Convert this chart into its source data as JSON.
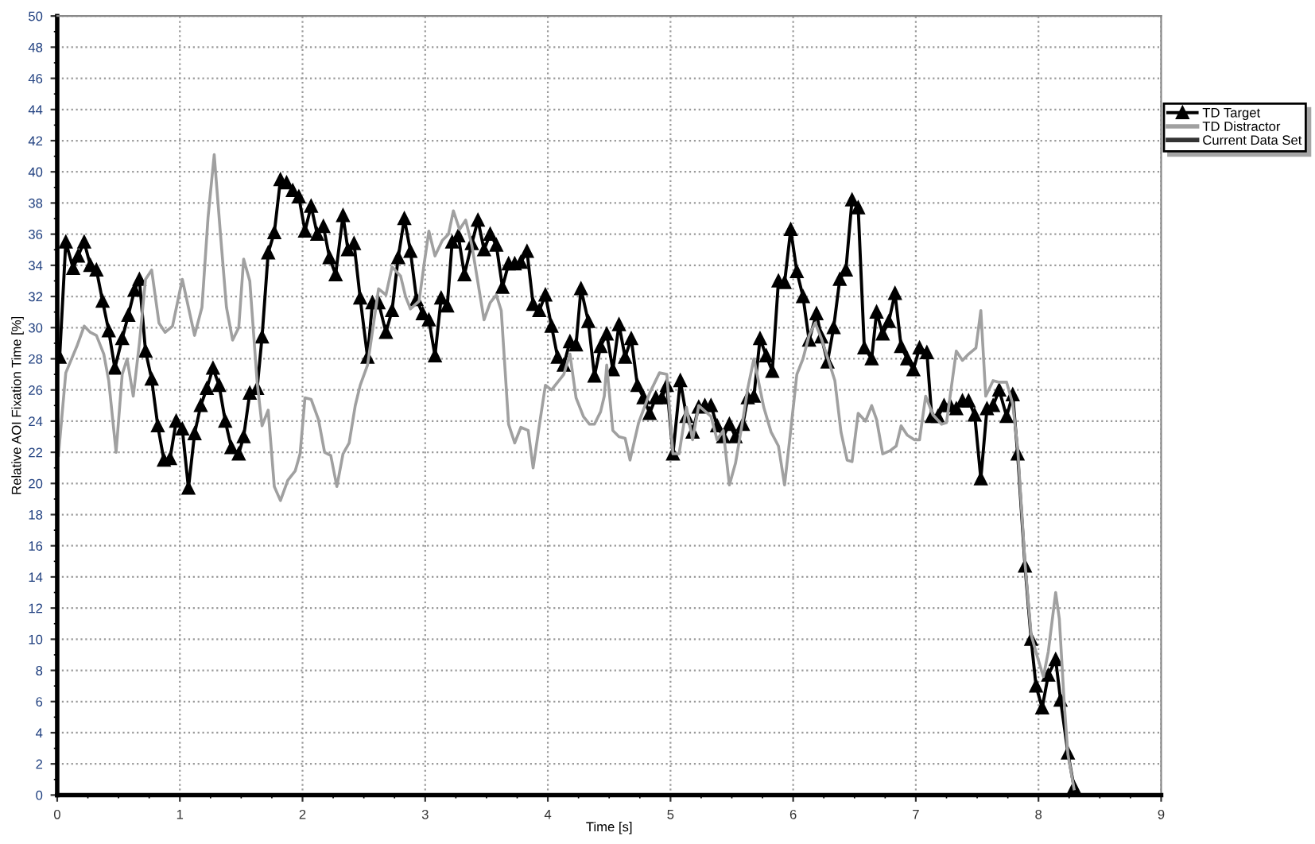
{
  "chart_data": {
    "type": "line",
    "xlabel": "Time [s]",
    "ylabel": "Relative AOI Fixation Time [%]",
    "xlim": [
      0,
      9
    ],
    "xticks": [
      0,
      1,
      2,
      3,
      4,
      5,
      6,
      7,
      8,
      9
    ],
    "ylim": [
      0,
      50
    ],
    "yticks": [
      0,
      2,
      4,
      6,
      8,
      10,
      12,
      14,
      16,
      18,
      20,
      22,
      24,
      26,
      28,
      30,
      32,
      34,
      36,
      38,
      40,
      42,
      44,
      46,
      48,
      50
    ],
    "grid": true,
    "legend": "right",
    "series": [
      {
        "name": "TD Target",
        "color": "#000000",
        "marker": "triangle",
        "line_style": "solid",
        "x": [
          0.02,
          0.07,
          0.13,
          0.17,
          0.22,
          0.27,
          0.32,
          0.37,
          0.42,
          0.47,
          0.53,
          0.58,
          0.63,
          0.67,
          0.72,
          0.77,
          0.82,
          0.87,
          0.92,
          0.97,
          1.02,
          1.07,
          1.12,
          1.17,
          1.22,
          1.27,
          1.32,
          1.37,
          1.42,
          1.48,
          1.52,
          1.57,
          1.63,
          1.67,
          1.72,
          1.77,
          1.82,
          1.87,
          1.92,
          1.97,
          2.02,
          2.07,
          2.12,
          2.17,
          2.22,
          2.27,
          2.33,
          2.37,
          2.42,
          2.47,
          2.53,
          2.57,
          2.62,
          2.68,
          2.73,
          2.78,
          2.83,
          2.88,
          2.93,
          2.98,
          3.03,
          3.08,
          3.13,
          3.18,
          3.22,
          3.27,
          3.32,
          3.38,
          3.43,
          3.48,
          3.53,
          3.58,
          3.63,
          3.68,
          3.73,
          3.78,
          3.83,
          3.88,
          3.93,
          3.98,
          4.03,
          4.08,
          4.13,
          4.18,
          4.23,
          4.27,
          4.33,
          4.38,
          4.43,
          4.48,
          4.53,
          4.58,
          4.63,
          4.68,
          4.73,
          4.78,
          4.83,
          4.88,
          4.93,
          4.97,
          5.02,
          5.08,
          5.13,
          5.18,
          5.23,
          5.28,
          5.33,
          5.38,
          5.43,
          5.48,
          5.53,
          5.59,
          5.63,
          5.68,
          5.73,
          5.78,
          5.83,
          5.88,
          5.93,
          5.98,
          6.03,
          6.08,
          6.13,
          6.19,
          6.23,
          6.28,
          6.33,
          6.38,
          6.43,
          6.48,
          6.53,
          6.58,
          6.64,
          6.68,
          6.73,
          6.78,
          6.83,
          6.88,
          6.93,
          6.98,
          7.03,
          7.09,
          7.13,
          7.18,
          7.23,
          7.28,
          7.33,
          7.38,
          7.43,
          7.48,
          7.53,
          7.58,
          7.63,
          7.68,
          7.74,
          7.79,
          7.83,
          7.89,
          7.94,
          7.98,
          8.03,
          8.08,
          8.14,
          8.18,
          8.24,
          8.29
        ],
        "values": [
          28.1,
          35.5,
          33.8,
          34.6,
          35.5,
          34.0,
          33.7,
          31.7,
          29.8,
          27.4,
          29.3,
          30.8,
          32.4,
          33.1,
          28.5,
          26.7,
          23.7,
          21.5,
          21.6,
          24.0,
          23.5,
          19.7,
          23.2,
          25.0,
          26.1,
          27.4,
          26.3,
          24.0,
          22.3,
          21.9,
          23.0,
          25.8,
          26.1,
          29.4,
          34.8,
          36.1,
          39.5,
          39.3,
          38.8,
          38.4,
          36.2,
          37.8,
          36.0,
          36.5,
          34.5,
          33.4,
          37.2,
          35.0,
          35.4,
          31.9,
          28.1,
          31.6,
          31.6,
          29.7,
          31.1,
          34.5,
          37.0,
          34.9,
          31.8,
          30.9,
          30.5,
          28.2,
          31.9,
          31.4,
          35.5,
          35.9,
          33.4,
          35.4,
          36.9,
          35.0,
          36.0,
          35.3,
          32.6,
          34.1,
          34.1,
          34.2,
          34.9,
          31.5,
          31.1,
          32.1,
          30.1,
          28.1,
          27.6,
          29.1,
          28.9,
          32.5,
          30.4,
          26.9,
          28.8,
          29.6,
          27.3,
          30.2,
          28.1,
          29.3,
          26.3,
          25.5,
          24.5,
          25.5,
          25.5,
          26.3,
          21.9,
          26.6,
          24.3,
          23.3,
          24.9,
          25.0,
          25.0,
          23.7,
          23.0,
          23.8,
          23.0,
          23.8,
          25.5,
          25.6,
          29.3,
          28.2,
          27.2,
          33.0,
          32.9,
          36.3,
          33.6,
          32.0,
          29.2,
          30.9,
          29.4,
          27.8,
          30.0,
          33.1,
          33.7,
          38.2,
          37.7,
          28.7,
          28.0,
          31.0,
          29.6,
          30.4,
          32.2,
          28.8,
          28.0,
          27.3,
          28.7,
          28.4,
          24.3,
          24.3,
          25.0,
          25.0,
          24.8,
          25.3,
          25.3,
          24.4,
          20.3,
          24.8,
          25.0,
          26.0,
          24.3,
          25.7,
          21.9,
          14.7,
          10.0,
          7.0,
          5.6,
          7.7,
          8.7,
          6.1,
          2.7,
          0.5
        ]
      },
      {
        "name": "TD Distractor",
        "color": "#a0a0a0",
        "marker": "none",
        "line_style": "solid",
        "x": [
          0.01,
          0.07,
          0.16,
          0.22,
          0.27,
          0.32,
          0.38,
          0.42,
          0.48,
          0.53,
          0.57,
          0.62,
          0.67,
          0.72,
          0.77,
          0.83,
          0.88,
          0.94,
          1.02,
          1.12,
          1.18,
          1.23,
          1.28,
          1.33,
          1.38,
          1.43,
          1.48,
          1.52,
          1.57,
          1.63,
          1.67,
          1.72,
          1.77,
          1.82,
          1.88,
          1.94,
          1.98,
          2.02,
          2.07,
          2.13,
          2.18,
          2.23,
          2.28,
          2.33,
          2.38,
          2.43,
          2.47,
          2.53,
          2.58,
          2.62,
          2.68,
          2.73,
          2.8,
          2.84,
          2.88,
          2.95,
          2.99,
          3.03,
          3.08,
          3.14,
          3.19,
          3.23,
          3.28,
          3.33,
          3.38,
          3.48,
          3.53,
          3.58,
          3.62,
          3.68,
          3.73,
          3.78,
          3.84,
          3.88,
          3.93,
          3.98,
          4.03,
          4.08,
          4.13,
          4.18,
          4.23,
          4.29,
          4.34,
          4.38,
          4.43,
          4.46,
          4.48,
          4.53,
          4.58,
          4.63,
          4.67,
          4.74,
          4.83,
          4.91,
          4.97,
          5.02,
          5.07,
          5.13,
          5.18,
          5.23,
          5.33,
          5.38,
          5.43,
          5.48,
          5.53,
          5.59,
          5.63,
          5.68,
          5.76,
          5.82,
          5.88,
          5.93,
          5.98,
          6.03,
          6.08,
          6.13,
          6.18,
          6.23,
          6.3,
          6.34,
          6.39,
          6.44,
          6.48,
          6.53,
          6.59,
          6.64,
          6.68,
          6.73,
          6.79,
          6.84,
          6.88,
          6.93,
          6.99,
          7.03,
          7.08,
          7.14,
          7.21,
          7.25,
          7.33,
          7.38,
          7.43,
          7.49,
          7.53,
          7.57,
          7.63,
          7.68,
          7.74,
          7.79,
          7.83,
          7.89,
          7.94,
          7.99,
          8.04,
          8.08,
          8.14,
          8.17,
          8.21,
          8.24,
          8.29
        ],
        "values": [
          21.8,
          27.1,
          28.8,
          30.1,
          29.7,
          29.5,
          28.3,
          26.6,
          22.0,
          27.0,
          28.0,
          25.6,
          29.0,
          33.1,
          33.7,
          30.3,
          29.7,
          30.1,
          33.1,
          29.5,
          31.3,
          37.1,
          41.1,
          36.1,
          31.3,
          29.2,
          30.0,
          34.4,
          33.0,
          26.5,
          23.7,
          24.7,
          19.8,
          18.9,
          20.2,
          20.8,
          21.9,
          25.5,
          25.4,
          24.1,
          22.0,
          21.8,
          19.8,
          21.9,
          22.6,
          25.0,
          26.3,
          27.6,
          30.3,
          32.5,
          32.1,
          33.9,
          33.3,
          32.0,
          31.2,
          31.7,
          34.0,
          36.2,
          34.6,
          35.6,
          36.0,
          37.5,
          36.3,
          36.9,
          35.3,
          30.5,
          31.6,
          32.1,
          31.1,
          23.8,
          22.6,
          23.6,
          23.4,
          21.0,
          23.7,
          26.3,
          26.0,
          26.5,
          27.0,
          28.3,
          25.5,
          24.3,
          23.8,
          23.8,
          24.6,
          25.6,
          27.6,
          23.4,
          23.0,
          22.9,
          21.5,
          23.9,
          25.8,
          27.1,
          27.0,
          21.9,
          21.9,
          24.9,
          22.8,
          25.0,
          24.3,
          22.8,
          23.4,
          19.9,
          21.3,
          24.1,
          26.1,
          28.0,
          24.9,
          23.3,
          22.4,
          19.9,
          23.4,
          27.0,
          28.0,
          29.5,
          30.3,
          29.3,
          27.6,
          26.6,
          23.3,
          21.5,
          21.4,
          24.5,
          24.0,
          25.0,
          24.1,
          21.9,
          22.1,
          22.4,
          23.7,
          23.1,
          22.8,
          22.8,
          25.6,
          24.4,
          23.8,
          23.9,
          28.5,
          27.9,
          28.3,
          28.7,
          31.1,
          25.6,
          26.6,
          26.5,
          26.5,
          25.1,
          22.3,
          14.9,
          10.3,
          8.9,
          7.6,
          9.2,
          13.0,
          11.3,
          5.9,
          2.6,
          0.4
        ]
      },
      {
        "name": "Current Data Set",
        "color": "#333333",
        "marker": "none",
        "line_style": "solid"
      }
    ]
  }
}
